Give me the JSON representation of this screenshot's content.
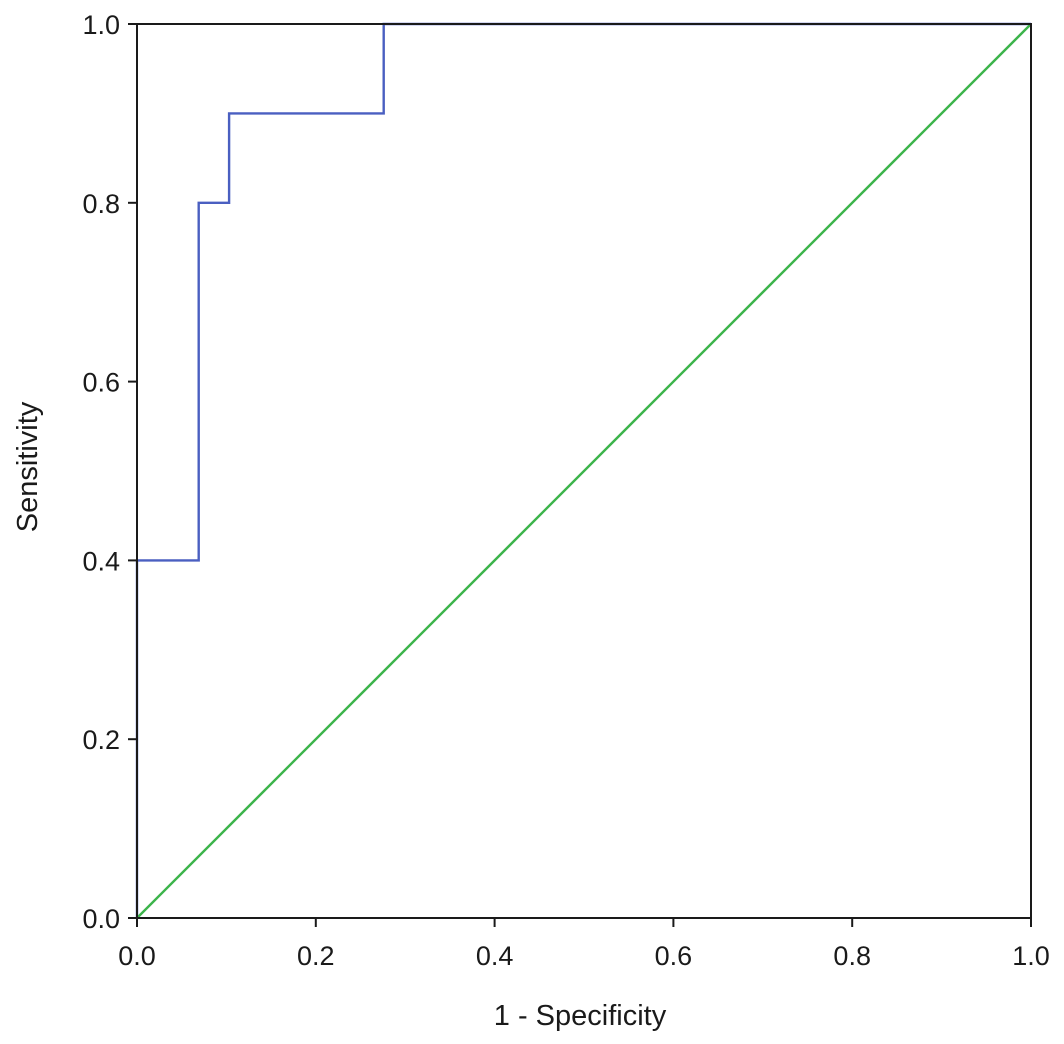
{
  "chart_data": {
    "type": "line",
    "title": "",
    "xlabel": "1 - Specificity",
    "ylabel": "Sensitivity",
    "xlim": [
      0,
      1
    ],
    "ylim": [
      0,
      1
    ],
    "x_ticks": [
      "0.0",
      "0.2",
      "0.4",
      "0.6",
      "0.8",
      "1.0"
    ],
    "y_ticks": [
      "0.0",
      "0.2",
      "0.4",
      "0.6",
      "0.8",
      "1.0"
    ],
    "grid": false,
    "legend": "none",
    "series": [
      {
        "color": "#4a5fc1",
        "step": true,
        "points": [
          [
            0.0,
            0.0
          ],
          [
            0.0,
            0.4
          ],
          [
            0.069,
            0.4
          ],
          [
            0.069,
            0.8
          ],
          [
            0.103,
            0.8
          ],
          [
            0.103,
            0.9
          ],
          [
            0.276,
            0.9
          ],
          [
            0.276,
            1.0
          ],
          [
            1.0,
            1.0
          ]
        ]
      },
      {
        "color": "#3cb44b",
        "step": false,
        "points": [
          [
            0.0,
            0.0
          ],
          [
            1.0,
            1.0
          ]
        ]
      }
    ]
  }
}
